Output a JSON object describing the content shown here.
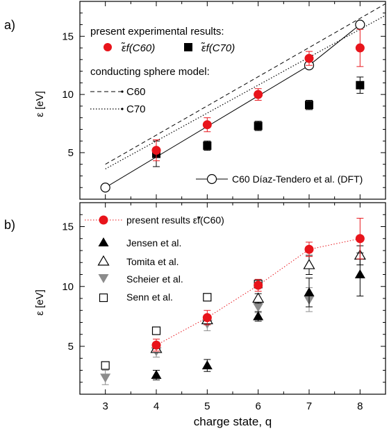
{
  "chart_data": [
    {
      "panel_label": "a)",
      "type": "scatter",
      "ylabel": "ε [eV]",
      "xlim": [
        2.5,
        8.5
      ],
      "ylim": [
        1,
        18
      ],
      "y_ticks": [
        5,
        10,
        15
      ],
      "legend": {
        "header1": "present experimental results:",
        "c60_label": "ε̃f(C60)",
        "c70_label": "ε̃f(C70)",
        "header2": "conducting sphere model:",
        "model_c60": "C60",
        "model_c70": "C70",
        "dft_label": "C60 Díaz-Tendero et al. (DFT)"
      },
      "series": [
        {
          "name": "ε̃f(C60)",
          "style": "red-circle",
          "color": "#e8141b",
          "points": [
            {
              "x": 4,
              "y": 5.2,
              "err": 0.9
            },
            {
              "x": 5,
              "y": 7.4,
              "err": 0.6
            },
            {
              "x": 6,
              "y": 10.0,
              "err": 0.5
            },
            {
              "x": 7,
              "y": 13.1,
              "err": 0.6
            },
            {
              "x": 8,
              "y": 14.0,
              "err": 1.6
            }
          ]
        },
        {
          "name": "ε̃f(C70)",
          "style": "black-square",
          "color": "#000000",
          "points": [
            {
              "x": 4,
              "y": 4.9,
              "err": 1.1
            },
            {
              "x": 5,
              "y": 5.6,
              "err": 0.4
            },
            {
              "x": 6,
              "y": 7.3,
              "err": 0.4
            },
            {
              "x": 7,
              "y": 9.1,
              "err": 0.4
            },
            {
              "x": 8,
              "y": 10.8,
              "err": 0.7
            }
          ]
        },
        {
          "name": "C60",
          "style": "dashed-line",
          "points": [
            {
              "x": 3,
              "y": 4.0
            },
            {
              "x": 8.5,
              "y": 17.8
            }
          ]
        },
        {
          "name": "C70",
          "style": "dotted-line",
          "points": [
            {
              "x": 3,
              "y": 3.6
            },
            {
              "x": 8.5,
              "y": 16.8
            }
          ]
        },
        {
          "name": "C60 Díaz-Tendero et al. (DFT)",
          "style": "open-circle-line",
          "points": [
            {
              "x": 3,
              "y": 2.0
            },
            {
              "x": 7,
              "y": 12.5
            },
            {
              "x": 8,
              "y": 16.0
            }
          ]
        }
      ]
    },
    {
      "panel_label": "b)",
      "type": "scatter",
      "xlabel": "charge state, q",
      "ylabel": "ε [eV]",
      "xlim": [
        2.5,
        8.5
      ],
      "ylim": [
        1,
        17
      ],
      "x_ticks": [
        3,
        4,
        5,
        6,
        7,
        8
      ],
      "y_ticks": [
        5,
        10,
        15
      ],
      "legend": {
        "present": "present results  ε̃f(C60)",
        "jensen": "Jensen et al.",
        "tomita": "Tomita et al.",
        "scheier": "Scheier et al.",
        "senn": "Senn et al."
      },
      "series": [
        {
          "name": "present results ε̃f(C60)",
          "style": "red-circle-dotted",
          "color": "#e8141b",
          "points": [
            {
              "x": 4,
              "y": 5.1,
              "err": 0.5
            },
            {
              "x": 5,
              "y": 7.4,
              "err": 0.6
            },
            {
              "x": 6,
              "y": 10.1,
              "err": 0.5
            },
            {
              "x": 7,
              "y": 13.1,
              "err": 0.6
            },
            {
              "x": 8,
              "y": 14.0,
              "err": 1.7
            }
          ]
        },
        {
          "name": "Jensen et al.",
          "style": "filled-triangle-up",
          "color": "#000000",
          "points": [
            {
              "x": 4,
              "y": 2.6,
              "err": 0.4
            },
            {
              "x": 5,
              "y": 3.4,
              "err": 0.5
            },
            {
              "x": 6,
              "y": 7.5,
              "err": 0.4
            },
            {
              "x": 7,
              "y": 9.5,
              "err": 1.2
            },
            {
              "x": 8,
              "y": 11.0,
              "err": 1.8
            }
          ]
        },
        {
          "name": "Tomita et al.",
          "style": "open-triangle-up",
          "color": "#000000",
          "points": [
            {
              "x": 4,
              "y": 4.8,
              "err": 0.3
            },
            {
              "x": 5,
              "y": 7.2,
              "err": 0.4
            },
            {
              "x": 6,
              "y": 9.0,
              "err": 0.4
            },
            {
              "x": 7,
              "y": 11.8,
              "err": 0.8
            },
            {
              "x": 8,
              "y": 12.6,
              "err": 0.8
            }
          ]
        },
        {
          "name": "Scheier et al.",
          "style": "gray-triangle-down",
          "color": "#8c8c8c",
          "points": [
            {
              "x": 3,
              "y": 2.4,
              "err": 0.6
            },
            {
              "x": 4,
              "y": 4.6,
              "err": 0.5
            },
            {
              "x": 5,
              "y": 6.9,
              "err": 0.6
            },
            {
              "x": 6,
              "y": 8.3,
              "err": 0.5
            },
            {
              "x": 7,
              "y": 8.9,
              "err": 1.0
            }
          ]
        },
        {
          "name": "Senn et al.",
          "style": "open-square",
          "color": "#000000",
          "points": [
            {
              "x": 3,
              "y": 3.4
            },
            {
              "x": 4,
              "y": 6.3
            },
            {
              "x": 5,
              "y": 9.1
            },
            {
              "x": 6,
              "y": 10.2
            }
          ]
        }
      ]
    }
  ]
}
